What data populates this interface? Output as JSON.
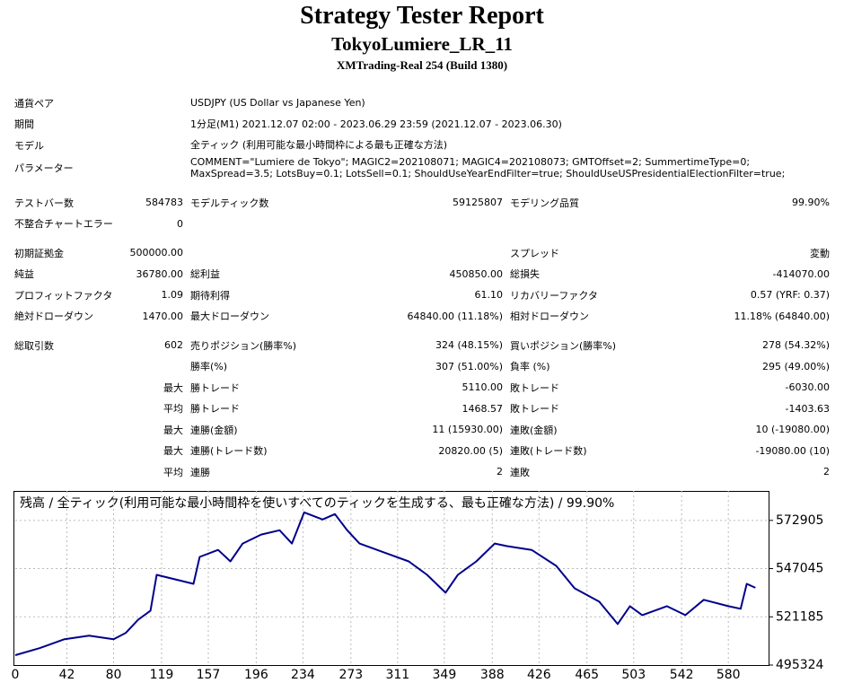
{
  "header": {
    "title": "Strategy Tester Report",
    "subtitle": "TokyoLumiere_LR_11",
    "server": "XMTrading-Real 254 (Build 1380)"
  },
  "info": [
    {
      "label": "通貨ペア",
      "value": "USDJPY (US Dollar vs Japanese Yen)"
    },
    {
      "label": "期間",
      "value": "1分足(M1) 2021.12.07 02:00 - 2023.06.29 23:59 (2021.12.07 - 2023.06.30)"
    },
    {
      "label": "モデル",
      "value": "全ティック (利用可能な最小時間枠による最も正確な方法)"
    },
    {
      "label": "パラメーター",
      "value": "COMMENT=\"Lumiere de Tokyo\"; MAGIC2=202108071; MAGIC4=202108073; GMTOffset=2; SummertimeType=0; MaxSpread=3.5; LotsBuy=0.1; LotsSell=0.1; ShouldUseYearEndFilter=true; ShouldUseUSPresidentialElectionFilter=true;"
    }
  ],
  "stats": [
    [
      [
        "テストバー数",
        "584783",
        "モデルティック数",
        "59125807",
        "モデリング品質",
        "99.90%"
      ],
      [
        "不整合チャートエラー",
        "0",
        null,
        null,
        null,
        null
      ]
    ],
    [
      [
        "初期証拠金",
        "500000.00",
        null,
        null,
        "スプレッド",
        "変動"
      ],
      [
        "純益",
        "36780.00",
        "総利益",
        "450850.00",
        "総損失",
        "-414070.00"
      ],
      [
        "プロフィットファクタ",
        "1.09",
        "期待利得",
        "61.10",
        "リカバリーファクタ",
        "0.57 (YRF: 0.37)"
      ],
      [
        "絶対ドローダウン",
        "1470.00",
        "最大ドローダウン",
        "64840.00 (11.18%)",
        "相対ドローダウン",
        "11.18% (64840.00)"
      ]
    ],
    [
      [
        "総取引数",
        "602",
        "売りポジション(勝率%)",
        "324 (48.15%)",
        "買いポジション(勝率%)",
        "278 (54.32%)"
      ],
      [
        null,
        null,
        "勝率(%)",
        "307 (51.00%)",
        "負率 (%)",
        "295 (49.00%)"
      ],
      [
        null,
        "最大",
        "勝トレード",
        "5110.00",
        "敗トレード",
        "-6030.00"
      ],
      [
        null,
        "平均",
        "勝トレード",
        "1468.57",
        "敗トレード",
        "-1403.63"
      ],
      [
        null,
        "最大",
        "連勝(金額)",
        "11 (15930.00)",
        "連敗(金額)",
        "10 (-19080.00)"
      ],
      [
        null,
        "最大",
        "連勝(トレード数)",
        "20820.00 (5)",
        "連敗(トレード数)",
        "-19080.00 (10)"
      ],
      [
        null,
        "平均",
        "連勝",
        "2",
        "連敗",
        "2"
      ]
    ]
  ],
  "chart_data": {
    "type": "line",
    "title": "残高 / 全ティック(利用可能な最小時間枠を使いすべてのティックを生成する、最も正確な方法) / 99.90%",
    "color": "#00008b",
    "grid": true,
    "x": [
      0,
      20,
      40,
      60,
      80,
      90,
      100,
      110,
      115,
      130,
      145,
      150,
      165,
      175,
      185,
      200,
      215,
      225,
      235,
      250,
      260,
      270,
      280,
      300,
      320,
      335,
      350,
      360,
      375,
      390,
      400,
      420,
      440,
      455,
      475,
      490,
      500,
      510,
      530,
      545,
      560,
      580,
      590,
      595,
      602
    ],
    "values": [
      500600,
      504400,
      509200,
      511100,
      509200,
      512600,
      519700,
      524500,
      543700,
      541300,
      538900,
      553300,
      557100,
      550900,
      560500,
      565300,
      567600,
      560500,
      577200,
      573400,
      576300,
      567600,
      560500,
      555700,
      550900,
      543700,
      534100,
      543700,
      550900,
      560500,
      559100,
      557100,
      548500,
      536500,
      529300,
      517300,
      526900,
      522100,
      526900,
      522100,
      530300,
      526900,
      525500,
      538900,
      536780
    ],
    "xlim": [
      0,
      612
    ],
    "xticks": [
      0,
      42,
      80,
      119,
      157,
      196,
      234,
      273,
      311,
      349,
      388,
      426,
      465,
      503,
      542,
      580
    ],
    "ylim": [
      495324,
      588700
    ],
    "yticks": [
      495324,
      521185,
      547045,
      572905
    ]
  }
}
